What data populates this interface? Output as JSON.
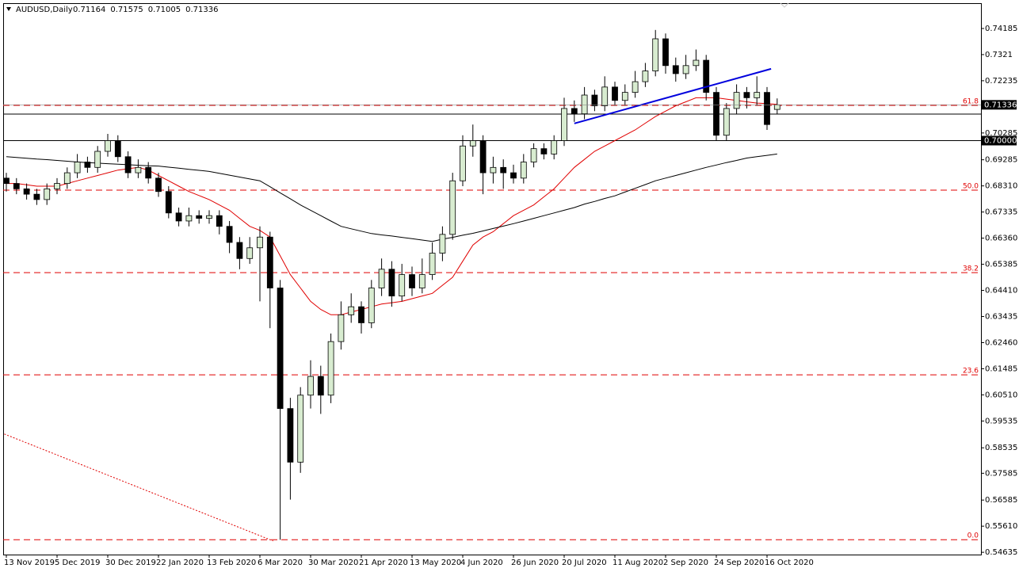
{
  "chart_data": {
    "type": "candlestick",
    "title": "AUDUSD,Daily",
    "header_values": [
      0.71164,
      0.71575,
      0.71005,
      0.71336
    ],
    "categories": [
      "13 Nov 2019",
      null,
      null,
      null,
      null,
      "5 Dec 2019",
      null,
      null,
      null,
      null,
      "30 Dec 2019",
      null,
      null,
      null,
      null,
      "22 Jan 2020",
      null,
      null,
      null,
      null,
      "13 Feb 2020",
      null,
      null,
      null,
      null,
      "6 Mar 2020",
      null,
      null,
      null,
      null,
      "30 Mar 2020",
      null,
      null,
      null,
      null,
      "21 Apr 2020",
      null,
      null,
      null,
      null,
      "13 May 2020",
      null,
      null,
      null,
      null,
      "4 Jun 2020",
      null,
      null,
      null,
      null,
      "26 Jun 2020",
      null,
      null,
      null,
      null,
      "20 Jul 2020",
      null,
      null,
      null,
      null,
      "11 Aug 2020",
      null,
      null,
      null,
      null,
      "2 Sep 2020",
      null,
      null,
      null,
      null,
      "24 Sep 2020",
      null,
      null,
      null,
      null,
      "16 Oct 2020",
      null
    ],
    "open": [
      0.686,
      0.684,
      0.682,
      0.68,
      0.678,
      0.682,
      0.684,
      0.688,
      0.692,
      0.69,
      0.696,
      0.7,
      0.694,
      0.688,
      0.69,
      0.686,
      0.681,
      0.673,
      0.67,
      0.672,
      0.671,
      0.672,
      0.668,
      0.662,
      0.656,
      0.66,
      0.664,
      0.645,
      0.6,
      0.58,
      0.605,
      0.612,
      0.605,
      0.625,
      0.635,
      0.638,
      0.632,
      0.645,
      0.652,
      0.642,
      0.65,
      0.645,
      0.65,
      0.658,
      0.665,
      0.685,
      0.698,
      0.7,
      0.688,
      0.69,
      0.688,
      0.686,
      0.692,
      0.697,
      0.695,
      0.7,
      0.712,
      0.71,
      0.717,
      0.713,
      0.72,
      0.715,
      0.718,
      0.722,
      0.726,
      0.738,
      0.728,
      0.725,
      0.728,
      0.73,
      0.718,
      0.702,
      0.712,
      0.718,
      0.716,
      0.718,
      0.71164
    ],
    "high": [
      0.688,
      0.686,
      0.684,
      0.682,
      0.684,
      0.686,
      0.69,
      0.695,
      0.694,
      0.698,
      0.7025,
      0.702,
      0.696,
      0.693,
      0.692,
      0.688,
      0.683,
      0.675,
      0.675,
      0.674,
      0.674,
      0.674,
      0.67,
      0.664,
      0.664,
      0.668,
      0.666,
      0.648,
      0.604,
      0.608,
      0.618,
      0.616,
      0.628,
      0.64,
      0.643,
      0.64,
      0.648,
      0.656,
      0.655,
      0.654,
      0.653,
      0.656,
      0.662,
      0.668,
      0.688,
      0.702,
      0.706,
      0.702,
      0.694,
      0.693,
      0.691,
      0.695,
      0.699,
      0.699,
      0.702,
      0.716,
      0.715,
      0.72,
      0.719,
      0.724,
      0.722,
      0.721,
      0.726,
      0.729,
      0.7413,
      0.74,
      0.731,
      0.732,
      0.734,
      0.732,
      0.72,
      0.714,
      0.721,
      0.72,
      0.724,
      0.72,
      0.71575
    ],
    "low": [
      0.681,
      0.68,
      0.678,
      0.676,
      0.676,
      0.68,
      0.682,
      0.686,
      0.688,
      0.688,
      0.694,
      0.692,
      0.686,
      0.686,
      0.684,
      0.679,
      0.671,
      0.668,
      0.668,
      0.669,
      0.669,
      0.665,
      0.658,
      0.652,
      0.654,
      0.64,
      0.63,
      0.551,
      0.566,
      0.576,
      0.6,
      0.598,
      0.602,
      0.622,
      0.632,
      0.628,
      0.63,
      0.642,
      0.638,
      0.64,
      0.642,
      0.643,
      0.648,
      0.655,
      0.663,
      0.683,
      0.694,
      0.68,
      0.684,
      0.682,
      0.684,
      0.684,
      0.69,
      0.693,
      0.693,
      0.698,
      0.707,
      0.708,
      0.711,
      0.711,
      0.713,
      0.713,
      0.716,
      0.72,
      0.724,
      0.725,
      0.722,
      0.723,
      0.726,
      0.715,
      0.7,
      0.7,
      0.71,
      0.712,
      0.713,
      0.704,
      0.71005
    ],
    "close": [
      0.684,
      0.682,
      0.68,
      0.678,
      0.682,
      0.684,
      0.688,
      0.692,
      0.69,
      0.696,
      0.7,
      0.694,
      0.688,
      0.69,
      0.686,
      0.681,
      0.673,
      0.67,
      0.672,
      0.671,
      0.672,
      0.668,
      0.662,
      0.656,
      0.66,
      0.664,
      0.645,
      0.6,
      0.58,
      0.605,
      0.612,
      0.605,
      0.625,
      0.635,
      0.638,
      0.632,
      0.645,
      0.652,
      0.642,
      0.65,
      0.645,
      0.65,
      0.658,
      0.665,
      0.685,
      0.698,
      0.7,
      0.688,
      0.69,
      0.688,
      0.686,
      0.692,
      0.697,
      0.695,
      0.7,
      0.712,
      0.71,
      0.717,
      0.713,
      0.72,
      0.715,
      0.718,
      0.722,
      0.726,
      0.738,
      0.728,
      0.725,
      0.728,
      0.73,
      0.718,
      0.702,
      0.712,
      0.718,
      0.716,
      0.718,
      0.706,
      0.71336
    ],
    "up_color": "#d8ecd0",
    "down_color": "#000000",
    "series": [
      {
        "color": "#e00000",
        "values": [
          0.684,
          0.684,
          0.6835,
          0.683,
          0.683,
          0.683,
          0.684,
          0.685,
          0.686,
          0.687,
          0.688,
          0.689,
          0.6895,
          0.69,
          0.689,
          0.687,
          0.685,
          0.683,
          0.681,
          0.6795,
          0.678,
          0.676,
          0.674,
          0.671,
          0.668,
          0.6665,
          0.664,
          0.657,
          0.65,
          0.645,
          0.64,
          0.637,
          0.635,
          0.635,
          0.636,
          0.637,
          0.638,
          0.639,
          0.6395,
          0.64,
          0.641,
          0.642,
          0.643,
          0.646,
          0.649,
          0.655,
          0.661,
          0.664,
          0.666,
          0.669,
          0.672,
          0.674,
          0.676,
          0.679,
          0.682,
          0.686,
          0.69,
          0.693,
          0.696,
          0.698,
          0.7,
          0.702,
          0.704,
          0.7065,
          0.709,
          0.711,
          0.713,
          0.7145,
          0.716,
          0.716,
          0.716,
          0.7155,
          0.715,
          0.7145,
          0.714,
          0.7138,
          0.7135
        ]
      },
      {
        "color": "#000000",
        "values": [
          0.694,
          0.6937,
          0.6934,
          0.6931,
          0.6929,
          0.6926,
          0.6923,
          0.692,
          0.6918,
          0.6916,
          0.6914,
          0.6912,
          0.691,
          0.6908,
          0.6906,
          0.6905,
          0.6901,
          0.6897,
          0.6893,
          0.6889,
          0.6885,
          0.6878,
          0.6871,
          0.6864,
          0.6857,
          0.685,
          0.6828,
          0.6805,
          0.6783,
          0.676,
          0.674,
          0.672,
          0.67,
          0.668,
          0.6671,
          0.6662,
          0.6653,
          0.6648,
          0.6644,
          0.6639,
          0.6634,
          0.6629,
          0.6624,
          0.6632,
          0.6639,
          0.6647,
          0.6654,
          0.6663,
          0.6672,
          0.6681,
          0.669,
          0.67,
          0.671,
          0.672,
          0.673,
          0.674,
          0.675,
          0.6763,
          0.6773,
          0.6784,
          0.6794,
          0.6808,
          0.6822,
          0.6836,
          0.685,
          0.686,
          0.687,
          0.688,
          0.689,
          0.69,
          0.6909,
          0.6918,
          0.6926,
          0.6935,
          0.694,
          0.6945,
          0.695
        ]
      }
    ],
    "trendlines": [
      {
        "color": "#0000dd",
        "x": [
          56,
          75.4
        ],
        "y": [
          0.7064,
          0.7268
        ]
      },
      {
        "color": "#e00000",
        "x": [
          -0.2,
          26.3
        ],
        "y": [
          0.5905,
          0.5506
        ]
      }
    ],
    "fib_levels": [
      {
        "value": 0.71316,
        "label": "61.8"
      },
      {
        "value": 0.6815,
        "label": "50.0"
      },
      {
        "value": 0.65074,
        "label": "38.2"
      },
      {
        "value": 0.61258,
        "label": "23.6"
      },
      {
        "value": 0.55106,
        "label": "0.0"
      }
    ],
    "fib_color": "#e00000",
    "hlines": [
      {
        "value": 0.7,
        "label": "0.70000"
      },
      {
        "value": 0.7099
      }
    ],
    "current_price": 0.71336,
    "ylim": [
      0.5455,
      0.7513
    ],
    "yticks": [
      0.74185,
      0.7321,
      0.72235,
      0.70285,
      0.69285,
      {
        "value": 0.6831,
        "label": "0.68310"
      },
      0.67335,
      {
        "value": 0.6636,
        "label": "0.66360"
      },
      0.65385,
      {
        "value": 0.6441,
        "label": "0.64410"
      },
      0.63435,
      {
        "value": 0.6246,
        "label": "0.62460"
      },
      0.61485,
      {
        "value": 0.6051,
        "label": "0.60510"
      },
      0.59535,
      0.58535,
      0.57585,
      0.56585,
      {
        "value": 0.5561,
        "label": "0.55610"
      },
      0.54635
    ]
  }
}
